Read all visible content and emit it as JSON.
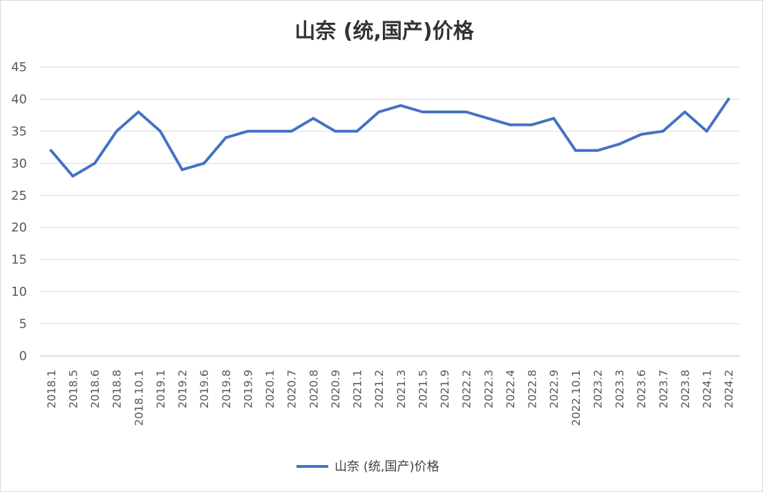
{
  "chart_data": {
    "type": "line",
    "title": "山奈 (统,国产)价格",
    "xlabel": "",
    "ylabel": "",
    "ylim": [
      0,
      45
    ],
    "yticks": [
      0,
      5,
      10,
      15,
      20,
      25,
      30,
      35,
      40,
      45
    ],
    "grid": true,
    "legend_position": "bottom",
    "categories": [
      "2018.1",
      "2018.5",
      "2018.6",
      "2018.8",
      "2018.10.1",
      "2019.1",
      "2019.2",
      "2019.6",
      "2019.8",
      "2019.9",
      "2020.1",
      "2020.7",
      "2020.8",
      "2020.9",
      "2021.1",
      "2021.2",
      "2021.3",
      "2021.5",
      "2021.9",
      "2022.2",
      "2022.3",
      "2022.4",
      "2022.8",
      "2022.9",
      "2022.10.1",
      "2023.2",
      "2023.3",
      "2023.6",
      "2023.7",
      "2023.8",
      "2024.1",
      "2024.2"
    ],
    "series": [
      {
        "name": "山奈 (统,国产)价格",
        "color": "#4472c4",
        "values": [
          32,
          28,
          30,
          35,
          38,
          35,
          29,
          30,
          34,
          35,
          35,
          35,
          37,
          35,
          35,
          38,
          39,
          38,
          38,
          38,
          37,
          36,
          36,
          37,
          32,
          32,
          33,
          34.5,
          35,
          38,
          35,
          40
        ]
      }
    ]
  }
}
